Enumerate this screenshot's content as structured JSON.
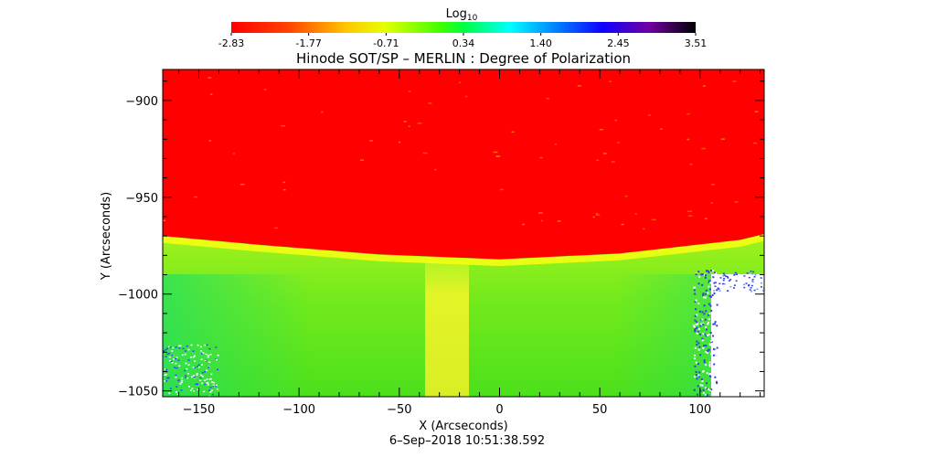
{
  "chart_data": {
    "type": "heatmap",
    "title": "Hinode SOT/SP – MERLIN : Degree of Polarization",
    "xlabel": "X (Arcseconds)",
    "ylabel": "Y (Arcseconds)",
    "timestamp": "6–Sep–2018 10:51:38.592",
    "colorbar": {
      "label_base": "Log",
      "label_sub": "10",
      "ticks": [
        "-2.83",
        "-1.77",
        "-0.71",
        "0.34",
        "1.40",
        "2.45",
        "3.51"
      ],
      "range": [
        -2.83,
        3.51
      ],
      "colormap": "rainbow reversed: red (low) → yellow → green → cyan → blue → purple → black (high)"
    },
    "x_ticks": [
      -150,
      -100,
      -50,
      0,
      50,
      100
    ],
    "y_ticks": [
      -900,
      -950,
      -1000,
      -1050
    ],
    "xlim": [
      -168,
      132
    ],
    "ylim": [
      -1053,
      -884
    ],
    "limb_edge": {
      "x": [
        -168,
        -120,
        -60,
        0,
        60,
        120,
        132
      ],
      "y": [
        -970,
        -974.5,
        -979.5,
        -982,
        -979,
        -972,
        -969
      ]
    },
    "regions": [
      {
        "region": "off-limb sky (above limb)",
        "value_range": [
          -2.83,
          -2.6
        ],
        "color": "#ff0000"
      },
      {
        "region": "limb band",
        "value_range": [
          -1.2,
          -0.7
        ],
        "color": "#f4ff1a"
      },
      {
        "region": "disk interior",
        "value_range": [
          -0.6,
          0.0
        ],
        "color": "#33e01a"
      },
      {
        "region": "central vertical strip x≈-35 to -15",
        "value_range": [
          -1.0,
          -0.8
        ],
        "color": "#e6f020"
      },
      {
        "region": "lower-right corner x>100, y<-1000",
        "value_range": null,
        "color": "#ffffff"
      }
    ]
  }
}
